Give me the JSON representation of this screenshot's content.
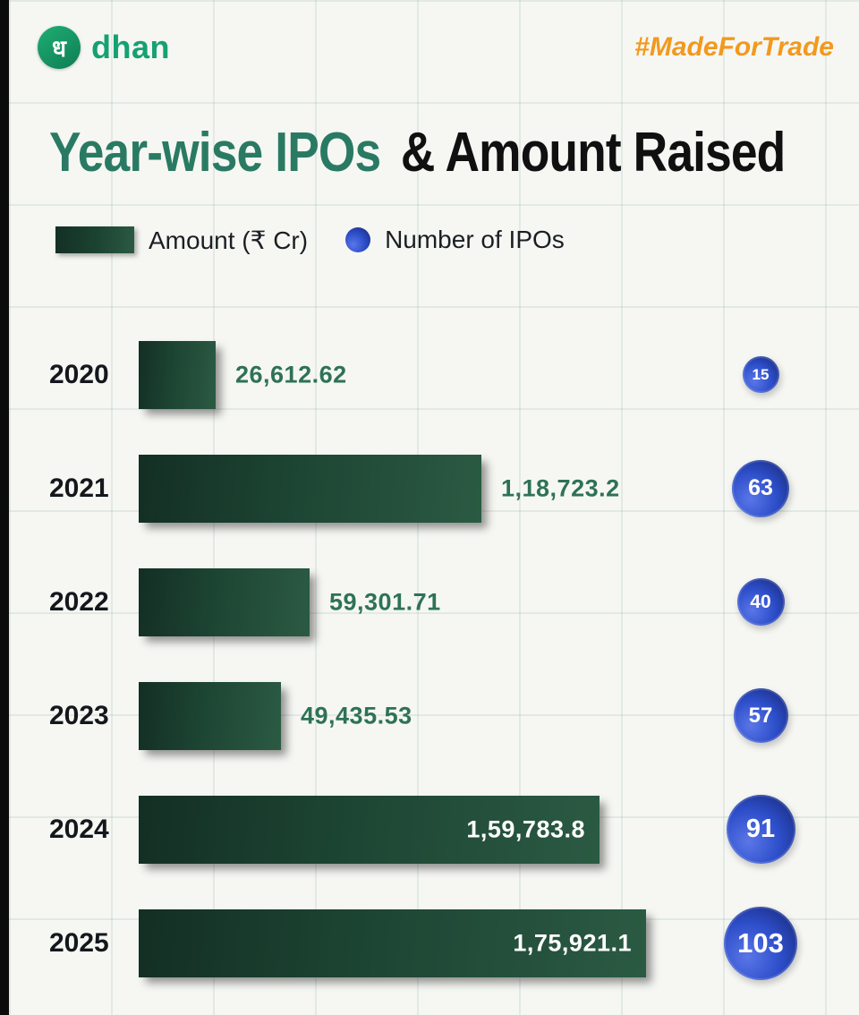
{
  "brand": {
    "logo_glyph": "ध",
    "name": "dhan",
    "tagline": "#MadeForTrade"
  },
  "title": {
    "highlight": "Year-wise IPOs",
    "rest": "& Amount Raised"
  },
  "legend": {
    "amount_label": "Amount (₹ Cr)",
    "ipos_label": "Number of IPOs"
  },
  "chart_data": {
    "type": "bar",
    "orientation": "horizontal",
    "title": "Year-wise IPOs & Amount Raised",
    "categories": [
      "2020",
      "2021",
      "2022",
      "2023",
      "2024",
      "2025"
    ],
    "series": [
      {
        "name": "Amount (₹ Cr)",
        "values": [
          26612.62,
          118723.2,
          59301.71,
          49435.53,
          159783.8,
          175921.1
        ],
        "labels": [
          "26,612.62",
          "1,18,723.2",
          "59,301.71",
          "49,435.53",
          "1,59,783.8",
          "1,75,921.1"
        ]
      },
      {
        "name": "Number of IPOs",
        "values": [
          15,
          63,
          40,
          57,
          91,
          103
        ]
      }
    ],
    "xlim": [
      0,
      175921.1
    ],
    "grid": "faint background grid",
    "legend_position": "top",
    "colors": {
      "bar": "#1d4533",
      "circle": "#2d4ec9",
      "value_text_outside": "#2e7257",
      "value_text_inside": "#ffffff",
      "title_highlight": "#2a7a63",
      "title_rest": "#101010",
      "tagline": "#f2991d",
      "brand_green": "#15a173"
    }
  }
}
